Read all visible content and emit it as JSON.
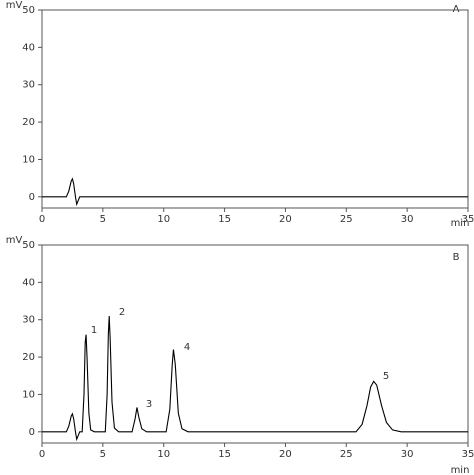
{
  "chart_data": [
    {
      "type": "line",
      "panel_label": "A",
      "y_label": "mV",
      "x_label": "min",
      "color": "#000000",
      "x": [
        0,
        2.0,
        2.2,
        2.4,
        2.5,
        2.6,
        2.75,
        2.85,
        2.95,
        3.1,
        3.4,
        35
      ],
      "values": [
        0,
        0,
        1.5,
        4.2,
        4.8,
        3.5,
        0,
        -2,
        -1.2,
        0,
        0,
        0
      ],
      "xlim": [
        0,
        35
      ],
      "xticks": [
        0,
        5,
        10,
        15,
        20,
        25,
        30,
        35
      ],
      "ylim": [
        -3,
        50
      ],
      "yticks": [
        0,
        10,
        20,
        30,
        40,
        50
      ]
    },
    {
      "type": "line",
      "panel_label": "B",
      "y_label": "mV",
      "x_label": "min",
      "color": "#000000",
      "peak_labels": [
        "1",
        "2",
        "3",
        "4",
        "5"
      ],
      "x": [
        0,
        2.0,
        2.2,
        2.4,
        2.5,
        2.6,
        2.75,
        2.85,
        2.95,
        3.1,
        3.3,
        3.45,
        3.55,
        3.62,
        3.7,
        3.85,
        4.0,
        4.3,
        5.2,
        5.35,
        5.45,
        5.52,
        5.6,
        5.75,
        5.95,
        6.3,
        7.4,
        7.65,
        7.8,
        7.95,
        8.2,
        8.6,
        10.2,
        10.5,
        10.7,
        10.8,
        10.95,
        11.2,
        11.5,
        12,
        25.8,
        26.3,
        26.7,
        27.0,
        27.25,
        27.5,
        27.9,
        28.3,
        28.8,
        29.5,
        35
      ],
      "values": [
        0,
        0,
        1.5,
        4.2,
        4.8,
        3.5,
        0,
        -2,
        -1.2,
        0,
        0,
        10,
        24,
        26,
        20,
        5,
        0.5,
        0,
        0,
        10,
        26,
        31,
        25,
        8,
        1,
        0,
        0,
        3.5,
        6.5,
        4,
        0.8,
        0,
        0,
        6,
        18,
        22,
        18,
        5,
        0.8,
        0,
        0,
        2,
        7,
        12,
        13.5,
        12.5,
        7,
        2.5,
        0.5,
        0,
        0
      ],
      "xlim": [
        0,
        35
      ],
      "xticks": [
        0,
        5,
        10,
        15,
        20,
        25,
        30,
        35
      ],
      "ylim": [
        -3,
        50
      ],
      "yticks": [
        0,
        10,
        20,
        30,
        40,
        50
      ]
    }
  ]
}
